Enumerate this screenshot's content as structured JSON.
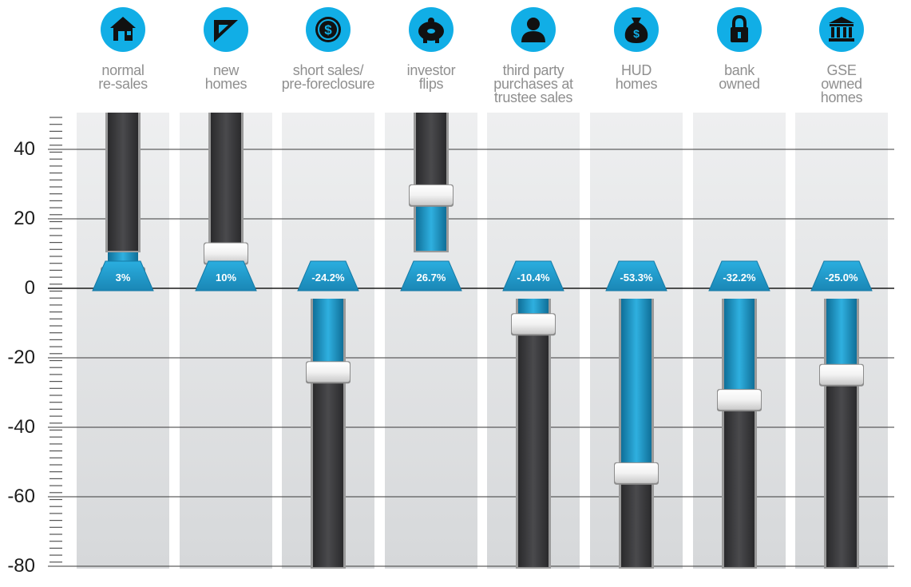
{
  "colors": {
    "icon_bg": "#11aee6",
    "column_bg": "#e4e5e6",
    "track_dark": "#3c3c3e",
    "fill_blue": "#1c93c4",
    "badge": "#1e93c3",
    "grid": "#3a3a3a"
  },
  "categories": [
    {
      "icon": "house-icon",
      "label_lines": [
        "normal",
        "re-sales"
      ]
    },
    {
      "icon": "set-square-icon",
      "label_lines": [
        "new",
        "homes"
      ]
    },
    {
      "icon": "dollar-coin-icon",
      "label_lines": [
        "short sales/",
        "pre-foreclosure"
      ]
    },
    {
      "icon": "piggy-bank-icon",
      "label_lines": [
        "investor",
        "flips"
      ]
    },
    {
      "icon": "person-icon",
      "label_lines": [
        "third party",
        "purchases at",
        "trustee sales"
      ]
    },
    {
      "icon": "money-bag-icon",
      "label_lines": [
        "HUD",
        "homes"
      ]
    },
    {
      "icon": "padlock-icon",
      "label_lines": [
        "bank",
        "owned"
      ]
    },
    {
      "icon": "bank-building-icon",
      "label_lines": [
        "GSE",
        "owned",
        "homes"
      ]
    }
  ],
  "chart_data": {
    "type": "bar",
    "categories": [
      "normal re-sales",
      "new homes",
      "short sales/ pre-foreclosure",
      "investor flips",
      "third party purchases at trustee sales",
      "HUD homes",
      "bank owned",
      "GSE owned homes"
    ],
    "values": [
      3,
      10,
      -24.2,
      26.7,
      -10.4,
      -53.3,
      -32.2,
      -25.0
    ],
    "value_labels": [
      "3%",
      "10%",
      "-24.2%",
      "26.7%",
      "-10.4%",
      "-53.3%",
      "-32.2%",
      "-25.0%"
    ],
    "yticks": [
      "40",
      "20",
      "0",
      "-20",
      "-40",
      "-60",
      "-80"
    ],
    "ytick_values": [
      40,
      20,
      0,
      -20,
      -40,
      -60,
      -80
    ],
    "ylim": [
      -80,
      50
    ],
    "grid": true,
    "title": "",
    "xlabel": "",
    "ylabel": ""
  }
}
